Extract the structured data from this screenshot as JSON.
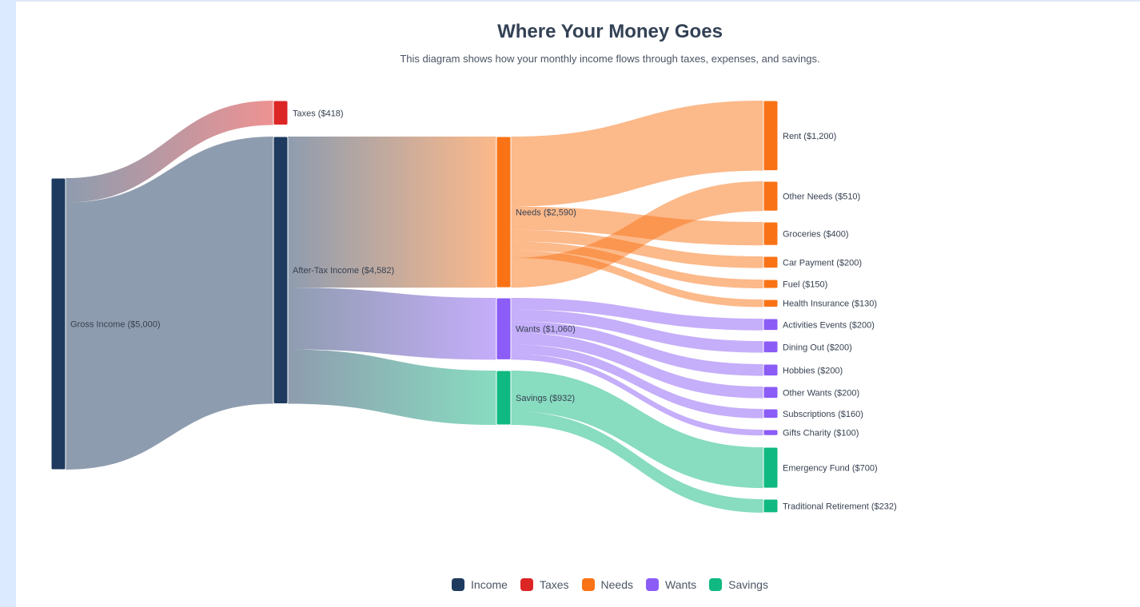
{
  "header": {
    "title": "Where Your Money Goes",
    "subtitle": "This diagram shows how your monthly income flows through taxes, expenses, and savings."
  },
  "colors": {
    "Income": "#1e3a5f",
    "Taxes": "#dc2626",
    "Needs": "#f97316",
    "Wants": "#8b5cf6",
    "Savings": "#10b981"
  },
  "legend": [
    {
      "label": "Income",
      "color": "#1e3a5f"
    },
    {
      "label": "Taxes",
      "color": "#dc2626"
    },
    {
      "label": "Needs",
      "color": "#f97316"
    },
    {
      "label": "Wants",
      "color": "#8b5cf6"
    },
    {
      "label": "Savings",
      "color": "#10b981"
    }
  ],
  "chart_data": {
    "type": "sankey",
    "title": "Where Your Money Goes",
    "nodes": [
      {
        "id": "gross",
        "label": "Gross Income ($5,000)",
        "value": 5000,
        "category": "Income"
      },
      {
        "id": "taxes",
        "label": "Taxes ($418)",
        "value": 418,
        "category": "Taxes"
      },
      {
        "id": "aftertax",
        "label": "After-Tax Income ($4,582)",
        "value": 4582,
        "category": "Income"
      },
      {
        "id": "needs",
        "label": "Needs ($2,590)",
        "value": 2590,
        "category": "Needs"
      },
      {
        "id": "wants",
        "label": "Wants ($1,060)",
        "value": 1060,
        "category": "Wants"
      },
      {
        "id": "savings",
        "label": "Savings ($932)",
        "value": 932,
        "category": "Savings"
      },
      {
        "id": "rent",
        "label": "Rent ($1,200)",
        "value": 1200,
        "category": "Needs"
      },
      {
        "id": "otherneeds",
        "label": "Other Needs ($510)",
        "value": 510,
        "category": "Needs"
      },
      {
        "id": "groceries",
        "label": "Groceries ($400)",
        "value": 400,
        "category": "Needs"
      },
      {
        "id": "car",
        "label": "Car Payment ($200)",
        "value": 200,
        "category": "Needs"
      },
      {
        "id": "fuel",
        "label": "Fuel ($150)",
        "value": 150,
        "category": "Needs"
      },
      {
        "id": "health",
        "label": "Health Insurance ($130)",
        "value": 130,
        "category": "Needs"
      },
      {
        "id": "activities",
        "label": "Activities Events ($200)",
        "value": 200,
        "category": "Wants"
      },
      {
        "id": "dining",
        "label": "Dining Out ($200)",
        "value": 200,
        "category": "Wants"
      },
      {
        "id": "hobbies",
        "label": "Hobbies ($200)",
        "value": 200,
        "category": "Wants"
      },
      {
        "id": "otherwants",
        "label": "Other Wants ($200)",
        "value": 200,
        "category": "Wants"
      },
      {
        "id": "subs",
        "label": "Subscriptions ($160)",
        "value": 160,
        "category": "Wants"
      },
      {
        "id": "gifts",
        "label": "Gifts Charity ($100)",
        "value": 100,
        "category": "Wants"
      },
      {
        "id": "emergency",
        "label": "Emergency Fund ($700)",
        "value": 700,
        "category": "Savings"
      },
      {
        "id": "retirement",
        "label": "Traditional Retirement ($232)",
        "value": 232,
        "category": "Savings"
      }
    ],
    "links": [
      {
        "source": "gross",
        "target": "taxes",
        "value": 418
      },
      {
        "source": "gross",
        "target": "aftertax",
        "value": 4582
      },
      {
        "source": "aftertax",
        "target": "needs",
        "value": 2590
      },
      {
        "source": "aftertax",
        "target": "wants",
        "value": 1060
      },
      {
        "source": "aftertax",
        "target": "savings",
        "value": 932
      },
      {
        "source": "needs",
        "target": "rent",
        "value": 1200
      },
      {
        "source": "needs",
        "target": "groceries",
        "value": 400
      },
      {
        "source": "needs",
        "target": "car",
        "value": 200
      },
      {
        "source": "needs",
        "target": "fuel",
        "value": 150
      },
      {
        "source": "needs",
        "target": "health",
        "value": 130
      },
      {
        "source": "needs",
        "target": "otherneeds",
        "value": 510
      },
      {
        "source": "wants",
        "target": "activities",
        "value": 200
      },
      {
        "source": "wants",
        "target": "dining",
        "value": 200
      },
      {
        "source": "wants",
        "target": "hobbies",
        "value": 200
      },
      {
        "source": "wants",
        "target": "otherwants",
        "value": 200
      },
      {
        "source": "wants",
        "target": "subs",
        "value": 160
      },
      {
        "source": "wants",
        "target": "gifts",
        "value": 100
      },
      {
        "source": "savings",
        "target": "emergency",
        "value": 700
      },
      {
        "source": "savings",
        "target": "retirement",
        "value": 232
      }
    ]
  }
}
